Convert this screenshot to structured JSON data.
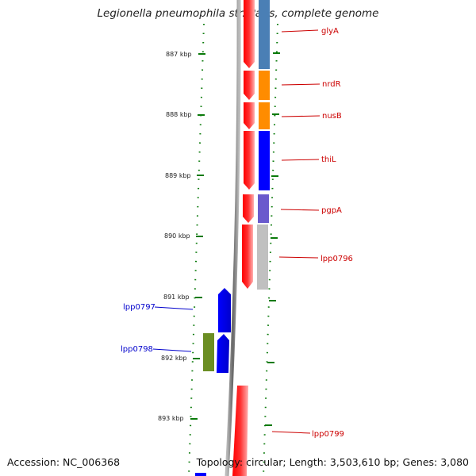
{
  "title": "Legionella pneumophila str. Paris, complete genome",
  "footer": {
    "accession": "Accession: NC_006368",
    "topology": "Topology: circular; Length: 3,503,610 bp; Genes: 3,080"
  },
  "colors": {
    "forward": "#ff0000",
    "reverse": "#0000ff",
    "scale": "#006400",
    "backbone": "#888888"
  },
  "ticks": [
    {
      "label": "887 kbp"
    },
    {
      "label": "888 kbp"
    },
    {
      "label": "889 kbp"
    },
    {
      "label": "890 kbp"
    },
    {
      "label": "891 kbp"
    },
    {
      "label": "892 kbp"
    },
    {
      "label": "893 kbp"
    }
  ],
  "forward_labels": [
    {
      "name": "glyA",
      "color": "#cc0000"
    },
    {
      "name": "nrdR",
      "color": "#cc0000"
    },
    {
      "name": "nusB",
      "color": "#cc0000"
    },
    {
      "name": "thiL",
      "color": "#cc0000"
    },
    {
      "name": "pgpA",
      "color": "#cc0000"
    },
    {
      "name": "lpp0796",
      "color": "#cc0000"
    },
    {
      "name": "lpp0799",
      "color": "#cc0000"
    }
  ],
  "reverse_labels": [
    {
      "name": "lpp0797",
      "color": "#0000cc"
    },
    {
      "name": "lpp0798",
      "color": "#0000cc"
    }
  ],
  "cog_colors": [
    "#4a7fb5",
    "#ff8c00",
    "#ff8c00",
    "#0000ff",
    "#6a5acd",
    "#c0c0c0",
    "#6b8e23"
  ]
}
